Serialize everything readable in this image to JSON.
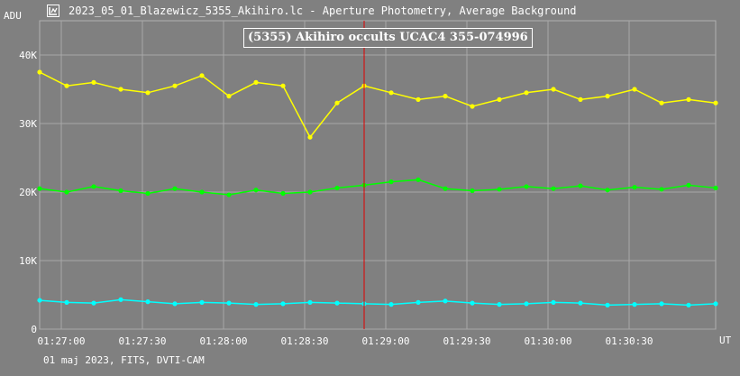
{
  "window": {
    "title": "2023_05_01_Blazewicz_5355_Akihiro.lc - Aperture Photometry, Average Background",
    "icon": "chart-app-icon"
  },
  "chart_data": {
    "type": "line",
    "title": "(5355) Akihiro occults UCAC4 355-074996",
    "ylabel": "ADU",
    "xlabel": "UT",
    "footer": "01 maj 2023, FITS, DVTI-CAM",
    "x_unit": "UT time",
    "x_range": [
      "01:26:52",
      "01:31:02"
    ],
    "ylim": [
      0,
      45000
    ],
    "y_ticks": [
      0,
      10000,
      20000,
      30000,
      40000
    ],
    "y_tick_labels": [
      "0",
      "10K",
      "20K",
      "30K",
      "40K"
    ],
    "x_ticks": [
      "01:27:00",
      "01:27:30",
      "01:28:00",
      "01:28:30",
      "01:29:00",
      "01:29:30",
      "01:30:00",
      "01:30:30"
    ],
    "grid": true,
    "marker_line": {
      "time": "01:28:52",
      "color": "#e00000"
    },
    "series": [
      {
        "color": "#ffff00",
        "x": [
          "01:26:52",
          "01:27:02",
          "01:27:12",
          "01:27:22",
          "01:27:32",
          "01:27:42",
          "01:27:52",
          "01:28:02",
          "01:28:12",
          "01:28:22",
          "01:28:32",
          "01:28:42",
          "01:28:52",
          "01:29:02",
          "01:29:12",
          "01:29:22",
          "01:29:32",
          "01:29:42",
          "01:29:52",
          "01:30:02",
          "01:30:12",
          "01:30:22",
          "01:30:32",
          "01:30:42",
          "01:30:52",
          "01:31:02"
        ],
        "values": [
          37500,
          35500,
          36000,
          35000,
          34500,
          35500,
          37000,
          34000,
          36000,
          35500,
          28000,
          33000,
          35500,
          34500,
          33500,
          34000,
          32500,
          33500,
          34500,
          35000,
          33500,
          34000,
          35000,
          33000,
          33500,
          33000
        ]
      },
      {
        "color": "#00ff00",
        "x": [
          "01:26:52",
          "01:27:02",
          "01:27:12",
          "01:27:22",
          "01:27:32",
          "01:27:42",
          "01:27:52",
          "01:28:02",
          "01:28:12",
          "01:28:22",
          "01:28:32",
          "01:28:42",
          "01:28:52",
          "01:29:02",
          "01:29:12",
          "01:29:22",
          "01:29:32",
          "01:29:42",
          "01:29:52",
          "01:30:02",
          "01:30:12",
          "01:30:22",
          "01:30:32",
          "01:30:42",
          "01:30:52",
          "01:31:02"
        ],
        "values": [
          20500,
          20000,
          20800,
          20200,
          19800,
          20500,
          20000,
          19600,
          20300,
          19800,
          20000,
          20600,
          21000,
          21500,
          21800,
          20500,
          20200,
          20400,
          20800,
          20500,
          20900,
          20300,
          20700,
          20400,
          21000,
          20600
        ]
      },
      {
        "color": "#00ffff",
        "x": [
          "01:26:52",
          "01:27:02",
          "01:27:12",
          "01:27:22",
          "01:27:32",
          "01:27:42",
          "01:27:52",
          "01:28:02",
          "01:28:12",
          "01:28:22",
          "01:28:32",
          "01:28:42",
          "01:28:52",
          "01:29:02",
          "01:29:12",
          "01:29:22",
          "01:29:32",
          "01:29:42",
          "01:29:52",
          "01:30:02",
          "01:30:12",
          "01:30:22",
          "01:30:32",
          "01:30:42",
          "01:30:52",
          "01:31:02"
        ],
        "values": [
          4200,
          3900,
          3800,
          4300,
          4000,
          3700,
          3900,
          3800,
          3600,
          3700,
          3900,
          3800,
          3700,
          3600,
          3900,
          4100,
          3800,
          3600,
          3700,
          3900,
          3800,
          3500,
          3600,
          3700,
          3500,
          3700
        ]
      }
    ]
  }
}
